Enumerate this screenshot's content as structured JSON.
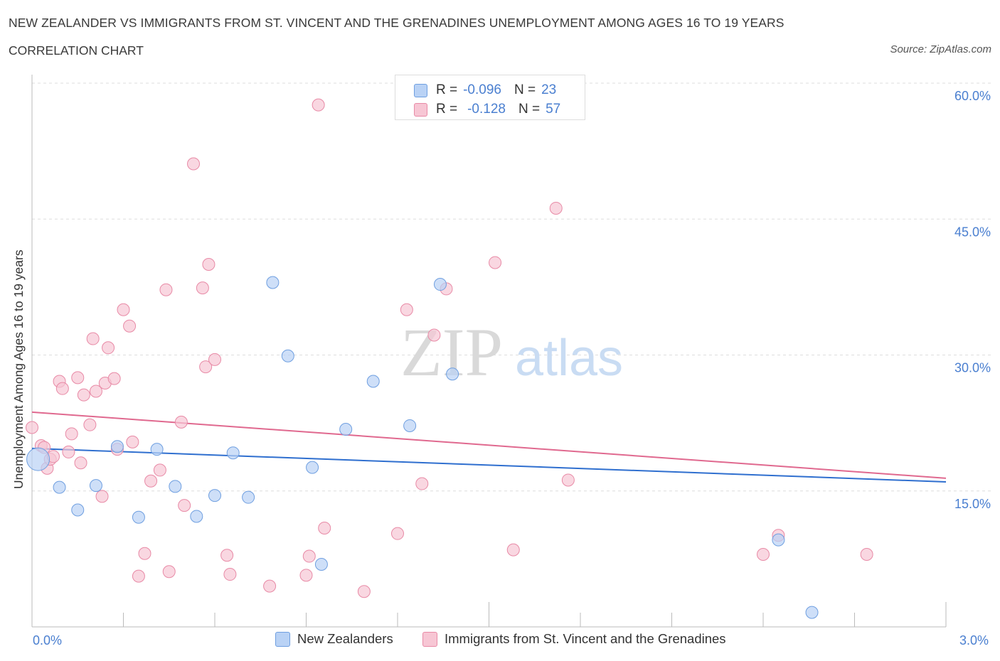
{
  "header": {
    "title": "NEW ZEALANDER VS IMMIGRANTS FROM ST. VINCENT AND THE GRENADINES UNEMPLOYMENT AMONG AGES 16 TO 19 YEARS",
    "subtitle": "CORRELATION CHART",
    "source": "Source: ZipAtlas.com"
  },
  "legend": {
    "series1": {
      "r_label": "R =",
      "r_value": "-0.096",
      "n_label": "N =",
      "n_value": "23"
    },
    "series2": {
      "r_label": "R =",
      "r_value": "-0.128",
      "n_label": "N =",
      "n_value": "57"
    }
  },
  "watermark": {
    "zip": "ZIP",
    "atlas": "atlas"
  },
  "colors": {
    "blue_fill": "#b9d2f5",
    "blue_stroke": "#6f9fe0",
    "blue_line": "#2f6fcf",
    "pink_fill": "#f7c6d4",
    "pink_stroke": "#e88aa6",
    "pink_line": "#e0698f",
    "axis_label": "#4a7fd0",
    "grid": "#dddddd"
  },
  "chart_data": {
    "type": "scatter",
    "title": "NEW ZEALANDER VS IMMIGRANTS FROM ST. VINCENT AND THE GRENADINES UNEMPLOYMENT AMONG AGES 16 TO 19 YEARS",
    "xlabel": "",
    "ylabel": "Unemployment Among Ages 16 to 19 years",
    "xlim": [
      0,
      3.0
    ],
    "ylim": [
      0,
      60.0
    ],
    "x_tick_labels": [
      "0.0%",
      "3.0%"
    ],
    "y_ticks": [
      15,
      30,
      45,
      60
    ],
    "y_tick_labels": [
      "15.0%",
      "30.0%",
      "45.0%",
      "60.0%"
    ],
    "grid": true,
    "legend_position": "top-center",
    "series": [
      {
        "name": "New Zealanders",
        "color": "#b9d2f5",
        "trend": {
          "x": [
            0,
            3.0
          ],
          "y": [
            19.7,
            16.0
          ]
        },
        "points": [
          {
            "x": 0.02,
            "y": 18.5,
            "big": true
          },
          {
            "x": 0.09,
            "y": 15.4
          },
          {
            "x": 0.15,
            "y": 12.9
          },
          {
            "x": 0.21,
            "y": 15.6
          },
          {
            "x": 0.28,
            "y": 19.9
          },
          {
            "x": 0.35,
            "y": 12.1
          },
          {
            "x": 0.41,
            "y": 19.6
          },
          {
            "x": 0.47,
            "y": 15.5
          },
          {
            "x": 0.54,
            "y": 12.2
          },
          {
            "x": 0.6,
            "y": 14.5
          },
          {
            "x": 0.66,
            "y": 19.2
          },
          {
            "x": 0.71,
            "y": 14.3
          },
          {
            "x": 0.79,
            "y": 38.0
          },
          {
            "x": 0.84,
            "y": 29.9
          },
          {
            "x": 0.92,
            "y": 17.6
          },
          {
            "x": 0.95,
            "y": 6.9
          },
          {
            "x": 1.03,
            "y": 21.8
          },
          {
            "x": 1.12,
            "y": 27.1
          },
          {
            "x": 1.24,
            "y": 22.2
          },
          {
            "x": 1.34,
            "y": 37.8
          },
          {
            "x": 1.38,
            "y": 27.9
          },
          {
            "x": 2.45,
            "y": 9.6
          },
          {
            "x": 2.56,
            "y": 1.6
          }
        ]
      },
      {
        "name": "Immigrants from St. Vincent and the Grenadines",
        "color": "#f7c6d4",
        "trend": {
          "x": [
            0,
            3.0
          ],
          "y": [
            23.7,
            16.4
          ]
        },
        "points": [
          {
            "x": 0.0,
            "y": 22.0
          },
          {
            "x": 0.03,
            "y": 20.0
          },
          {
            "x": 0.04,
            "y": 19.8
          },
          {
            "x": 0.05,
            "y": 17.5
          },
          {
            "x": 0.06,
            "y": 18.5
          },
          {
            "x": 0.07,
            "y": 18.8
          },
          {
            "x": 0.09,
            "y": 27.1
          },
          {
            "x": 0.1,
            "y": 26.3
          },
          {
            "x": 0.12,
            "y": 19.3
          },
          {
            "x": 0.13,
            "y": 21.3
          },
          {
            "x": 0.15,
            "y": 27.5
          },
          {
            "x": 0.16,
            "y": 18.1
          },
          {
            "x": 0.17,
            "y": 25.6
          },
          {
            "x": 0.19,
            "y": 22.3
          },
          {
            "x": 0.2,
            "y": 31.8
          },
          {
            "x": 0.21,
            "y": 26.0
          },
          {
            "x": 0.23,
            "y": 14.4
          },
          {
            "x": 0.24,
            "y": 26.9
          },
          {
            "x": 0.25,
            "y": 30.8
          },
          {
            "x": 0.27,
            "y": 27.4
          },
          {
            "x": 0.28,
            "y": 19.6
          },
          {
            "x": 0.3,
            "y": 35.0
          },
          {
            "x": 0.32,
            "y": 33.2
          },
          {
            "x": 0.33,
            "y": 20.4
          },
          {
            "x": 0.35,
            "y": 5.6
          },
          {
            "x": 0.37,
            "y": 8.1
          },
          {
            "x": 0.39,
            "y": 16.1
          },
          {
            "x": 0.42,
            "y": 17.3
          },
          {
            "x": 0.44,
            "y": 37.2
          },
          {
            "x": 0.45,
            "y": 6.1
          },
          {
            "x": 0.49,
            "y": 22.6
          },
          {
            "x": 0.5,
            "y": 13.4
          },
          {
            "x": 0.53,
            "y": 51.1
          },
          {
            "x": 0.56,
            "y": 37.4
          },
          {
            "x": 0.57,
            "y": 28.7
          },
          {
            "x": 0.58,
            "y": 40.0
          },
          {
            "x": 0.6,
            "y": 29.5
          },
          {
            "x": 0.64,
            "y": 7.9
          },
          {
            "x": 0.65,
            "y": 5.8
          },
          {
            "x": 0.78,
            "y": 4.5
          },
          {
            "x": 0.9,
            "y": 5.7
          },
          {
            "x": 0.91,
            "y": 7.8
          },
          {
            "x": 0.94,
            "y": 57.6
          },
          {
            "x": 0.96,
            "y": 10.9
          },
          {
            "x": 1.09,
            "y": 3.9
          },
          {
            "x": 1.2,
            "y": 10.3
          },
          {
            "x": 1.23,
            "y": 35.0
          },
          {
            "x": 1.28,
            "y": 15.8
          },
          {
            "x": 1.32,
            "y": 32.2
          },
          {
            "x": 1.36,
            "y": 37.3
          },
          {
            "x": 1.52,
            "y": 40.2
          },
          {
            "x": 1.58,
            "y": 8.5
          },
          {
            "x": 1.72,
            "y": 46.2
          },
          {
            "x": 1.76,
            "y": 16.2
          },
          {
            "x": 2.45,
            "y": 10.1
          },
          {
            "x": 2.4,
            "y": 8.0
          },
          {
            "x": 2.74,
            "y": 8.0
          }
        ]
      }
    ]
  }
}
